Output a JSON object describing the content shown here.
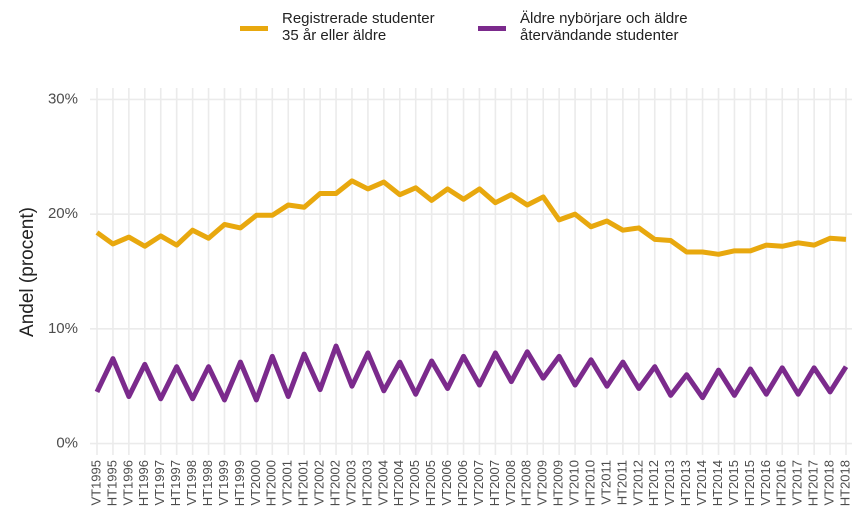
{
  "chart_data": {
    "type": "line",
    "categories": [
      "VT1995",
      "HT1995",
      "VT1996",
      "HT1996",
      "VT1997",
      "HT1997",
      "VT1998",
      "HT1998",
      "VT1999",
      "HT1999",
      "VT2000",
      "HT2000",
      "VT2001",
      "HT2001",
      "VT2002",
      "HT2002",
      "VT2003",
      "HT2003",
      "VT2004",
      "HT2004",
      "VT2005",
      "HT2005",
      "VT2006",
      "HT2006",
      "VT2007",
      "HT2007",
      "VT2008",
      "HT2008",
      "VT2009",
      "HT2009",
      "VT2010",
      "HT2010",
      "VT2011",
      "HT2011",
      "VT2012",
      "HT2012",
      "VT2013",
      "HT2013",
      "VT2014",
      "HT2014",
      "VT2015",
      "HT2015",
      "VT2016",
      "HT2016",
      "VT2017",
      "HT2017",
      "VT2018",
      "HT2018"
    ],
    "y_label": "Andel (procent)",
    "series": [
      {
        "name": "Registrerade studenter\n35 år eller äldre",
        "color": "#e8a80e",
        "values": [
          18.4,
          17.4,
          18.0,
          17.2,
          18.1,
          17.3,
          18.6,
          17.9,
          19.1,
          18.8,
          19.9,
          19.9,
          20.8,
          20.6,
          21.8,
          21.8,
          22.9,
          22.2,
          22.8,
          21.7,
          22.3,
          21.2,
          22.2,
          21.3,
          22.2,
          21.0,
          21.7,
          20.8,
          21.5,
          19.5,
          20.0,
          18.9,
          19.4,
          18.6,
          18.8,
          17.8,
          17.7,
          16.7,
          16.7,
          16.5,
          16.8,
          16.8,
          17.3,
          17.2,
          17.5,
          17.3,
          17.9,
          17.8
        ]
      },
      {
        "name": "Äldre nybörjare och äldre\nåtervändande studenter",
        "color": "#7b2a8c",
        "values": [
          4.5,
          7.4,
          4.1,
          6.9,
          3.9,
          6.7,
          3.9,
          6.7,
          3.8,
          7.1,
          3.8,
          7.6,
          4.1,
          7.8,
          4.7,
          8.5,
          5.0,
          7.9,
          4.6,
          7.1,
          4.3,
          7.2,
          4.8,
          7.6,
          5.1,
          7.9,
          5.4,
          8.0,
          5.7,
          7.6,
          5.1,
          7.3,
          5.0,
          7.1,
          4.8,
          6.7,
          4.2,
          6.0,
          4.0,
          6.4,
          4.2,
          6.5,
          4.3,
          6.6,
          4.3,
          6.6,
          4.5,
          6.7
        ]
      }
    ],
    "ylim": [
      -1,
      31
    ],
    "yticks": [
      {
        "value": 0,
        "label": "0%"
      },
      {
        "value": 10,
        "label": "10%"
      },
      {
        "value": 20,
        "label": "20%"
      },
      {
        "value": 30,
        "label": "30%"
      }
    ],
    "grid": true,
    "legend": "top"
  }
}
